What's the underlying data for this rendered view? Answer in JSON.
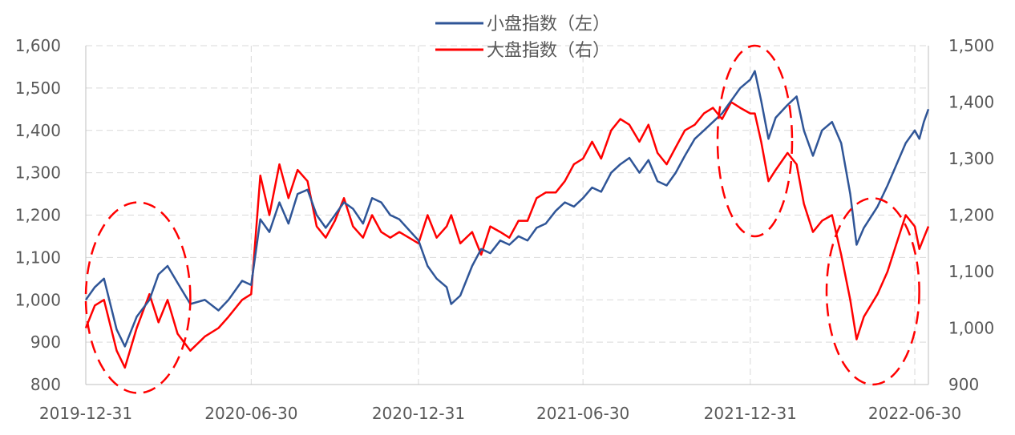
{
  "chart_data": {
    "type": "line",
    "title": "",
    "x_tick_labels": [
      "2019-12-31",
      "2020-06-30",
      "2020-12-31",
      "2021-06-30",
      "2021-12-31",
      "2022-06-30"
    ],
    "x_range": [
      "2019-12-31",
      "2022-07-15"
    ],
    "y_left": {
      "min": 800,
      "max": 1600,
      "ticks": [
        "800",
        "900",
        "1,000",
        "1,100",
        "1,200",
        "1,300",
        "1,400",
        "1,500",
        "1,600"
      ]
    },
    "y_right": {
      "min": 900,
      "max": 1500,
      "ticks": [
        "900",
        "1,000",
        "1,100",
        "1,200",
        "1,300",
        "1,400",
        "1,500"
      ]
    },
    "grid": "dashed",
    "legend_position": "top-center",
    "series": [
      {
        "name": "小盘指数（左）",
        "axis": "left",
        "color": "#2F5597",
        "points": [
          [
            "2019-12-31",
            1000
          ],
          [
            "2020-01-10",
            1030
          ],
          [
            "2020-01-20",
            1050
          ],
          [
            "2020-02-03",
            930
          ],
          [
            "2020-02-12",
            890
          ],
          [
            "2020-02-25",
            960
          ],
          [
            "2020-03-10",
            1000
          ],
          [
            "2020-03-20",
            1060
          ],
          [
            "2020-03-30",
            1080
          ],
          [
            "2020-04-10",
            1040
          ],
          [
            "2020-04-24",
            990
          ],
          [
            "2020-05-10",
            1000
          ],
          [
            "2020-05-25",
            975
          ],
          [
            "2020-06-05",
            1000
          ],
          [
            "2020-06-20",
            1045
          ],
          [
            "2020-06-30",
            1035
          ],
          [
            "2020-07-10",
            1190
          ],
          [
            "2020-07-20",
            1160
          ],
          [
            "2020-07-31",
            1230
          ],
          [
            "2020-08-10",
            1180
          ],
          [
            "2020-08-20",
            1250
          ],
          [
            "2020-08-31",
            1260
          ],
          [
            "2020-09-10",
            1200
          ],
          [
            "2020-09-20",
            1170
          ],
          [
            "2020-09-30",
            1200
          ],
          [
            "2020-10-10",
            1230
          ],
          [
            "2020-10-20",
            1215
          ],
          [
            "2020-10-31",
            1180
          ],
          [
            "2020-11-10",
            1240
          ],
          [
            "2020-11-20",
            1230
          ],
          [
            "2020-11-30",
            1200
          ],
          [
            "2020-12-10",
            1190
          ],
          [
            "2020-12-31",
            1140
          ],
          [
            "2021-01-10",
            1080
          ],
          [
            "2021-01-20",
            1050
          ],
          [
            "2021-01-31",
            1030
          ],
          [
            "2021-02-05",
            990
          ],
          [
            "2021-02-15",
            1010
          ],
          [
            "2021-02-28",
            1080
          ],
          [
            "2021-03-10",
            1120
          ],
          [
            "2021-03-20",
            1110
          ],
          [
            "2021-03-31",
            1140
          ],
          [
            "2021-04-10",
            1130
          ],
          [
            "2021-04-20",
            1150
          ],
          [
            "2021-04-30",
            1140
          ],
          [
            "2021-05-10",
            1170
          ],
          [
            "2021-05-20",
            1180
          ],
          [
            "2021-05-31",
            1210
          ],
          [
            "2021-06-10",
            1230
          ],
          [
            "2021-06-20",
            1220
          ],
          [
            "2021-06-30",
            1240
          ],
          [
            "2021-07-10",
            1265
          ],
          [
            "2021-07-20",
            1255
          ],
          [
            "2021-07-31",
            1300
          ],
          [
            "2021-08-10",
            1320
          ],
          [
            "2021-08-20",
            1335
          ],
          [
            "2021-08-31",
            1300
          ],
          [
            "2021-09-10",
            1330
          ],
          [
            "2021-09-20",
            1280
          ],
          [
            "2021-09-30",
            1270
          ],
          [
            "2021-10-10",
            1300
          ],
          [
            "2021-10-20",
            1340
          ],
          [
            "2021-10-31",
            1380
          ],
          [
            "2021-11-10",
            1400
          ],
          [
            "2021-11-20",
            1420
          ],
          [
            "2021-11-30",
            1440
          ],
          [
            "2021-12-10",
            1470
          ],
          [
            "2021-12-20",
            1500
          ],
          [
            "2021-12-31",
            1520
          ],
          [
            "2022-01-05",
            1540
          ],
          [
            "2022-01-12",
            1470
          ],
          [
            "2022-01-20",
            1380
          ],
          [
            "2022-01-28",
            1430
          ],
          [
            "2022-02-10",
            1460
          ],
          [
            "2022-02-20",
            1480
          ],
          [
            "2022-02-28",
            1400
          ],
          [
            "2022-03-10",
            1340
          ],
          [
            "2022-03-20",
            1400
          ],
          [
            "2022-03-31",
            1420
          ],
          [
            "2022-04-10",
            1370
          ],
          [
            "2022-04-20",
            1250
          ],
          [
            "2022-04-27",
            1130
          ],
          [
            "2022-05-05",
            1170
          ],
          [
            "2022-05-20",
            1220
          ],
          [
            "2022-05-31",
            1270
          ],
          [
            "2022-06-10",
            1320
          ],
          [
            "2022-06-20",
            1370
          ],
          [
            "2022-06-30",
            1400
          ],
          [
            "2022-07-05",
            1380
          ],
          [
            "2022-07-10",
            1420
          ],
          [
            "2022-07-15",
            1450
          ]
        ]
      },
      {
        "name": "大盘指数（右）",
        "axis": "right",
        "color": "#FF0000",
        "points": [
          [
            "2019-12-31",
            1000
          ],
          [
            "2020-01-10",
            1040
          ],
          [
            "2020-01-20",
            1050
          ],
          [
            "2020-02-03",
            960
          ],
          [
            "2020-02-12",
            930
          ],
          [
            "2020-02-25",
            1000
          ],
          [
            "2020-03-10",
            1060
          ],
          [
            "2020-03-20",
            1010
          ],
          [
            "2020-03-30",
            1050
          ],
          [
            "2020-04-10",
            990
          ],
          [
            "2020-04-24",
            960
          ],
          [
            "2020-05-10",
            985
          ],
          [
            "2020-05-25",
            1000
          ],
          [
            "2020-06-05",
            1020
          ],
          [
            "2020-06-20",
            1050
          ],
          [
            "2020-06-30",
            1060
          ],
          [
            "2020-07-10",
            1270
          ],
          [
            "2020-07-20",
            1200
          ],
          [
            "2020-07-31",
            1290
          ],
          [
            "2020-08-10",
            1230
          ],
          [
            "2020-08-20",
            1280
          ],
          [
            "2020-08-31",
            1260
          ],
          [
            "2020-09-10",
            1180
          ],
          [
            "2020-09-20",
            1160
          ],
          [
            "2020-09-30",
            1190
          ],
          [
            "2020-10-10",
            1230
          ],
          [
            "2020-10-20",
            1180
          ],
          [
            "2020-10-31",
            1160
          ],
          [
            "2020-11-10",
            1200
          ],
          [
            "2020-11-20",
            1170
          ],
          [
            "2020-11-30",
            1160
          ],
          [
            "2020-12-10",
            1170
          ],
          [
            "2020-12-31",
            1150
          ],
          [
            "2021-01-10",
            1200
          ],
          [
            "2021-01-20",
            1160
          ],
          [
            "2021-01-31",
            1180
          ],
          [
            "2021-02-05",
            1200
          ],
          [
            "2021-02-15",
            1150
          ],
          [
            "2021-02-28",
            1170
          ],
          [
            "2021-03-10",
            1130
          ],
          [
            "2021-03-20",
            1180
          ],
          [
            "2021-03-31",
            1170
          ],
          [
            "2021-04-10",
            1160
          ],
          [
            "2021-04-20",
            1190
          ],
          [
            "2021-04-30",
            1190
          ],
          [
            "2021-05-10",
            1230
          ],
          [
            "2021-05-20",
            1240
          ],
          [
            "2021-05-31",
            1240
          ],
          [
            "2021-06-10",
            1260
          ],
          [
            "2021-06-20",
            1290
          ],
          [
            "2021-06-30",
            1300
          ],
          [
            "2021-07-10",
            1330
          ],
          [
            "2021-07-20",
            1300
          ],
          [
            "2021-07-31",
            1350
          ],
          [
            "2021-08-10",
            1370
          ],
          [
            "2021-08-20",
            1360
          ],
          [
            "2021-08-31",
            1330
          ],
          [
            "2021-09-10",
            1360
          ],
          [
            "2021-09-20",
            1310
          ],
          [
            "2021-09-30",
            1290
          ],
          [
            "2021-10-10",
            1320
          ],
          [
            "2021-10-20",
            1350
          ],
          [
            "2021-10-31",
            1360
          ],
          [
            "2021-11-10",
            1380
          ],
          [
            "2021-11-20",
            1390
          ],
          [
            "2021-11-30",
            1370
          ],
          [
            "2021-12-10",
            1400
          ],
          [
            "2021-12-20",
            1390
          ],
          [
            "2021-12-31",
            1380
          ],
          [
            "2022-01-05",
            1380
          ],
          [
            "2022-01-12",
            1330
          ],
          [
            "2022-01-20",
            1260
          ],
          [
            "2022-01-28",
            1280
          ],
          [
            "2022-02-10",
            1310
          ],
          [
            "2022-02-20",
            1290
          ],
          [
            "2022-02-28",
            1220
          ],
          [
            "2022-03-10",
            1170
          ],
          [
            "2022-03-20",
            1190
          ],
          [
            "2022-03-31",
            1200
          ],
          [
            "2022-04-10",
            1130
          ],
          [
            "2022-04-20",
            1050
          ],
          [
            "2022-04-27",
            980
          ],
          [
            "2022-05-05",
            1020
          ],
          [
            "2022-05-20",
            1060
          ],
          [
            "2022-05-31",
            1100
          ],
          [
            "2022-06-10",
            1150
          ],
          [
            "2022-06-20",
            1200
          ],
          [
            "2022-06-30",
            1180
          ],
          [
            "2022-07-05",
            1140
          ],
          [
            "2022-07-10",
            1160
          ],
          [
            "2022-07-15",
            1180
          ]
        ]
      }
    ],
    "annotations": [
      {
        "shape": "dashed-ellipse",
        "color": "#FF0000",
        "x_from": "2019-12-31",
        "x_to": "2020-04-24",
        "y_left_from": 780,
        "y_left_to": 1230
      },
      {
        "shape": "dashed-ellipse",
        "color": "#FF0000",
        "x_from": "2021-11-25",
        "x_to": "2022-02-15",
        "y_left_from": 1150,
        "y_left_to": 1600
      },
      {
        "shape": "dashed-ellipse",
        "color": "#FF0000",
        "x_from": "2022-03-25",
        "x_to": "2022-07-05",
        "y_left_from": 800,
        "y_left_to": 1240
      }
    ]
  }
}
